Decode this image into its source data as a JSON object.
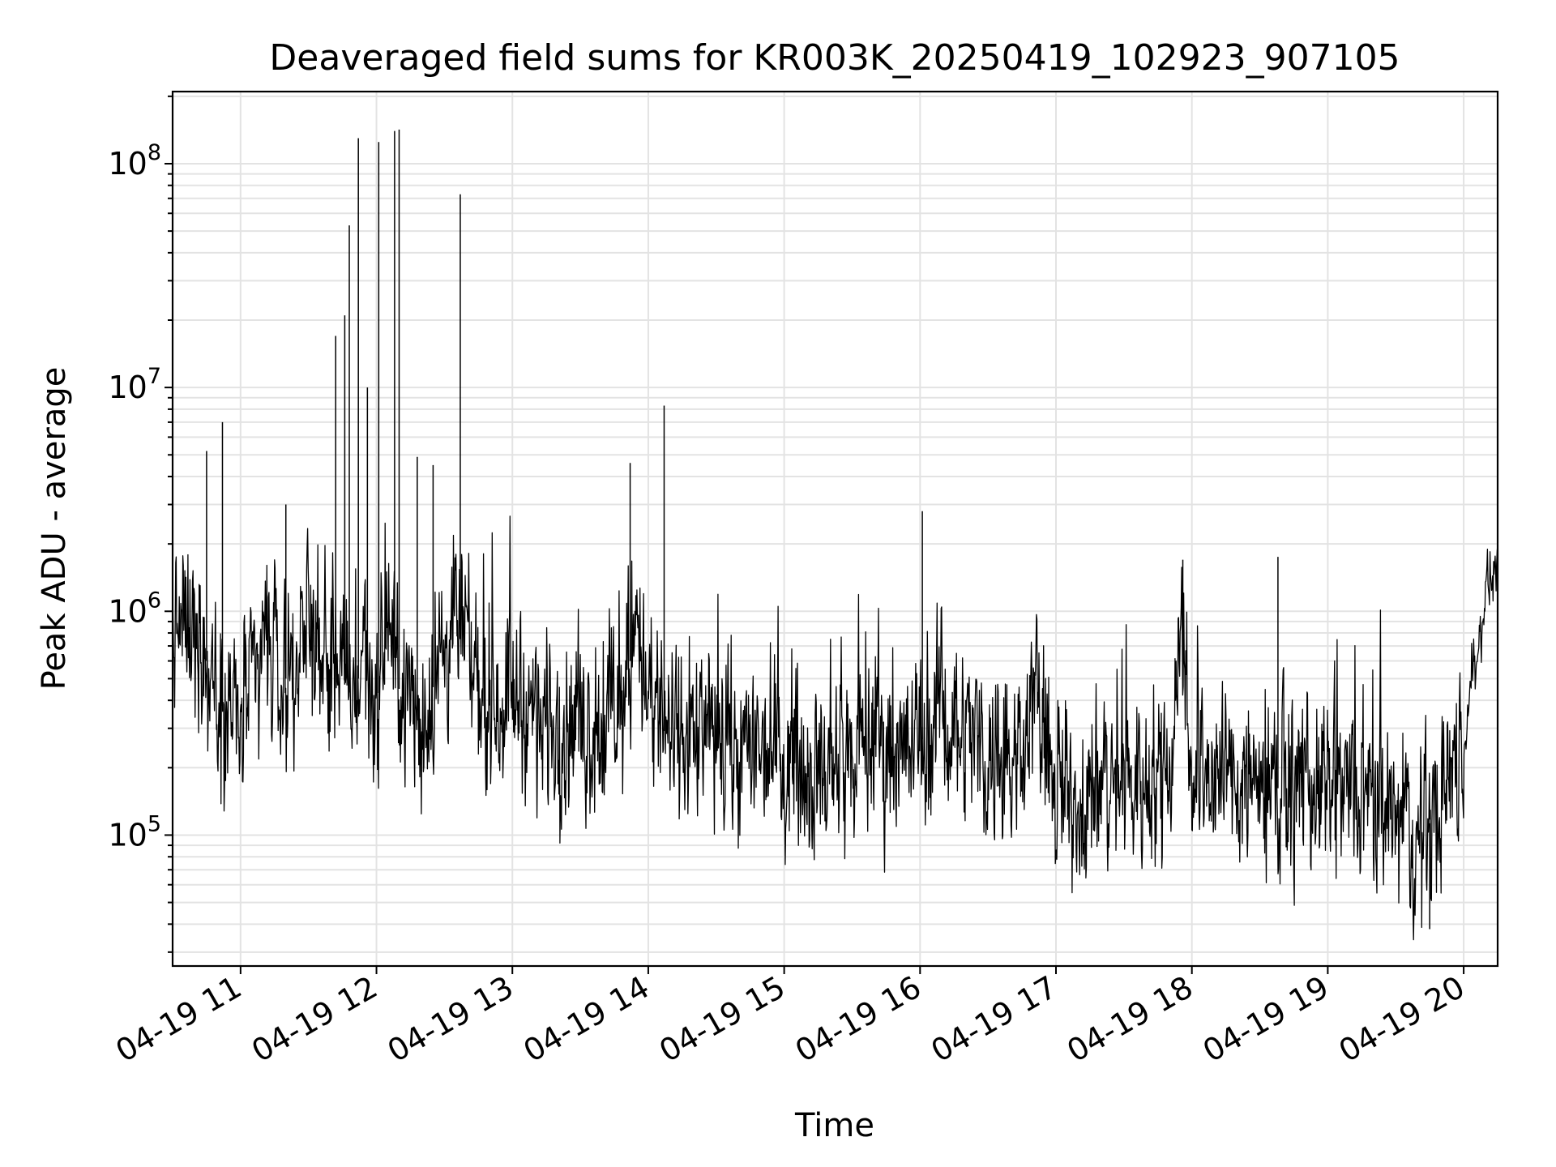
{
  "chart_data": {
    "type": "line",
    "title": "Deaveraged field sums for KR003K_20250419_102923_907105",
    "xlabel": "Time",
    "ylabel": "Peak ADU - average",
    "x_scale": "time",
    "y_scale": "log",
    "x_range": [
      "2025-04-19T10:30",
      "2025-04-19T20:15"
    ],
    "y_range": [
      26000,
      210000000
    ],
    "x_tick_labels": [
      "04-19 11",
      "04-19 12",
      "04-19 13",
      "04-19 14",
      "04-19 15",
      "04-19 16",
      "04-19 17",
      "04-19 18",
      "04-19 19",
      "04-19 20"
    ],
    "y_ticks": [
      {
        "base": "10",
        "exp": "5"
      },
      {
        "base": "10",
        "exp": "6"
      },
      {
        "base": "10",
        "exp": "7"
      },
      {
        "base": "10",
        "exp": "8"
      }
    ],
    "grid": true,
    "legend": "none",
    "line_color": "#000000",
    "series": [
      {
        "x": [
          "10:30",
          "10:40",
          "10:50",
          "11:00",
          "11:10",
          "11:20",
          "11:30",
          "11:40",
          "11:50",
          "11:55",
          "12:00",
          "12:05",
          "12:10",
          "12:20",
          "12:30",
          "12:35",
          "12:40",
          "12:50",
          "13:00",
          "13:10",
          "13:20",
          "13:30",
          "13:40",
          "13:50",
          "13:55",
          "14:00",
          "14:05",
          "14:10",
          "14:20",
          "14:30",
          "14:40",
          "14:50",
          "15:00",
          "15:10",
          "15:20",
          "15:30",
          "15:40",
          "15:50",
          "16:00",
          "16:10",
          "16:20",
          "16:30",
          "16:40",
          "16:50",
          "17:00",
          "17:10",
          "17:20",
          "17:30",
          "17:40",
          "17:50",
          "17:55",
          "18:00",
          "18:10",
          "18:20",
          "18:30",
          "18:40",
          "18:50",
          "19:00",
          "19:10",
          "19:20",
          "19:30",
          "19:40",
          "19:50",
          "20:00",
          "20:10",
          "20:15"
        ],
        "y": [
          800000,
          900000,
          400000,
          300000,
          700000,
          500000,
          900000,
          600000,
          400000,
          700000,
          350000,
          1000000,
          450000,
          300000,
          700000,
          900000,
          600000,
          400000,
          450000,
          350000,
          300000,
          320000,
          280000,
          400000,
          1100000,
          350000,
          300000,
          280000,
          270000,
          250000,
          230000,
          260000,
          240000,
          200000,
          190000,
          210000,
          280000,
          230000,
          260000,
          350000,
          310000,
          230000,
          200000,
          450000,
          140000,
          150000,
          160000,
          170000,
          180000,
          200000,
          900000,
          210000,
          190000,
          180000,
          170000,
          160000,
          170000,
          150000,
          150000,
          130000,
          110000,
          85000,
          150000,
          250000,
          1300000,
          1600000
        ]
      }
    ],
    "spikes": [
      {
        "x": "10:45",
        "y": 5200000
      },
      {
        "x": "10:52",
        "y": 7000000
      },
      {
        "x": "11:20",
        "y": 3000000
      },
      {
        "x": "11:42",
        "y": 17000000
      },
      {
        "x": "11:46",
        "y": 21000000
      },
      {
        "x": "11:48",
        "y": 53000000
      },
      {
        "x": "11:52",
        "y": 130000000
      },
      {
        "x": "11:56",
        "y": 10000000
      },
      {
        "x": "12:01",
        "y": 125000000
      },
      {
        "x": "12:08",
        "y": 140000000
      },
      {
        "x": "12:10",
        "y": 142000000
      },
      {
        "x": "12:18",
        "y": 4900000
      },
      {
        "x": "12:25",
        "y": 4500000
      },
      {
        "x": "12:37",
        "y": 73000000
      },
      {
        "x": "13:52",
        "y": 4600000
      },
      {
        "x": "14:07",
        "y": 8300000
      },
      {
        "x": "16:01",
        "y": 2800000
      },
      {
        "x": "17:56",
        "y": 1700000
      },
      {
        "x": "18:38",
        "y": 1750000
      },
      {
        "x": "19:45",
        "y": 38000
      }
    ]
  }
}
